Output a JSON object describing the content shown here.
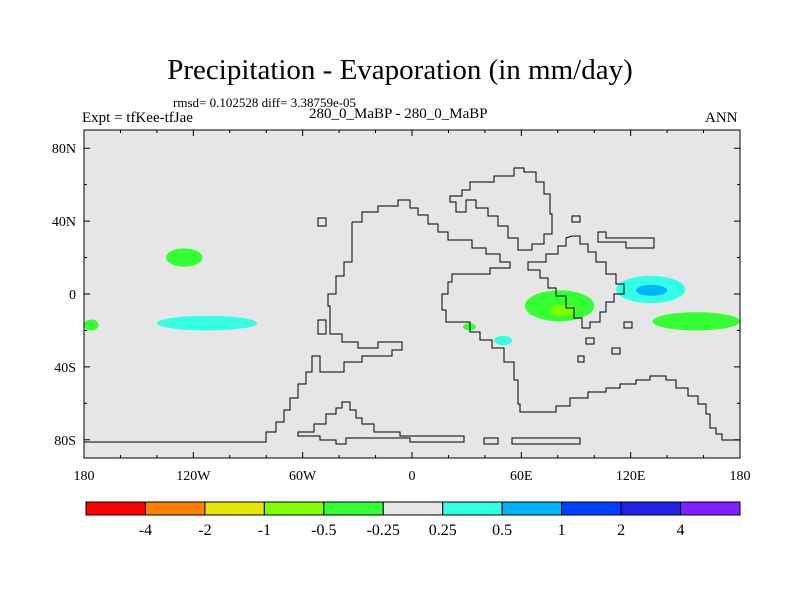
{
  "chart_data": {
    "type": "heatmap",
    "title": "Precipitation - Evaporation (in mm/day)",
    "stats_line": "rmsd= 0.102528 diff= 3.38759e-05",
    "subtitle": "280_0_MaBP - 280_0_MaBP",
    "left_label": "Expt = tfKee-tfJae",
    "right_label": "ANN",
    "x_ticks": [
      "180",
      "120W",
      "60W",
      "0",
      "60E",
      "120E",
      "180"
    ],
    "y_ticks": [
      "80N",
      "40N",
      "0",
      "40S",
      "80S"
    ],
    "xlim": [
      -180,
      180
    ],
    "ylim": [
      -90,
      90
    ],
    "grid": false,
    "background_color": "#e6e6e6",
    "colorbar": {
      "colors": [
        "#ff0000",
        "#ff8000",
        "#e6e600",
        "#80ff00",
        "#33ff33",
        "#e6e6e6",
        "#33ffe6",
        "#00b3ff",
        "#0040ff",
        "#2020e6",
        "#8020ff"
      ],
      "labels": [
        "-4",
        "-2",
        "-1",
        "-0.5",
        "-0.25",
        "0.25",
        "0.5",
        "1",
        "2",
        "4"
      ]
    },
    "anomaly_regions": [
      {
        "category": "-0.25 to -0.5",
        "color": "#33ff33",
        "lon": [
          -135,
          -115
        ],
        "lat": [
          15,
          25
        ]
      },
      {
        "category": "0.25 to 0.5",
        "color": "#33ffe6",
        "lon": [
          -140,
          -85
        ],
        "lat": [
          -20,
          -12
        ]
      },
      {
        "category": "-0.25 to -0.5",
        "color": "#33ff33",
        "lon": [
          -180,
          -172
        ],
        "lat": [
          -20,
          -14
        ]
      },
      {
        "category": "-0.25 to -0.5",
        "color": "#33ff33",
        "lon": [
          62,
          100
        ],
        "lat": [
          -15,
          2
        ]
      },
      {
        "category": "-0.5 to -1",
        "color": "#80ff00",
        "lon": [
          75,
          90
        ],
        "lat": [
          -12,
          -6
        ]
      },
      {
        "category": "0.25 to 0.5",
        "color": "#33ffe6",
        "lon": [
          112,
          150
        ],
        "lat": [
          -5,
          10
        ]
      },
      {
        "category": "0.5 to 1",
        "color": "#00b3ff",
        "lon": [
          123,
          140
        ],
        "lat": [
          -1,
          5
        ]
      },
      {
        "category": "-0.25 to -0.5",
        "color": "#33ff33",
        "lon": [
          132,
          180
        ],
        "lat": [
          -20,
          -10
        ]
      },
      {
        "category": "0.25 to 0.5",
        "color": "#33ffe6",
        "lon": [
          45,
          55
        ],
        "lat": [
          -28,
          -23
        ]
      },
      {
        "category": "-0.25 to -0.5",
        "color": "#33ff33",
        "lon": [
          28,
          35
        ],
        "lat": [
          -20,
          -16
        ]
      }
    ]
  }
}
